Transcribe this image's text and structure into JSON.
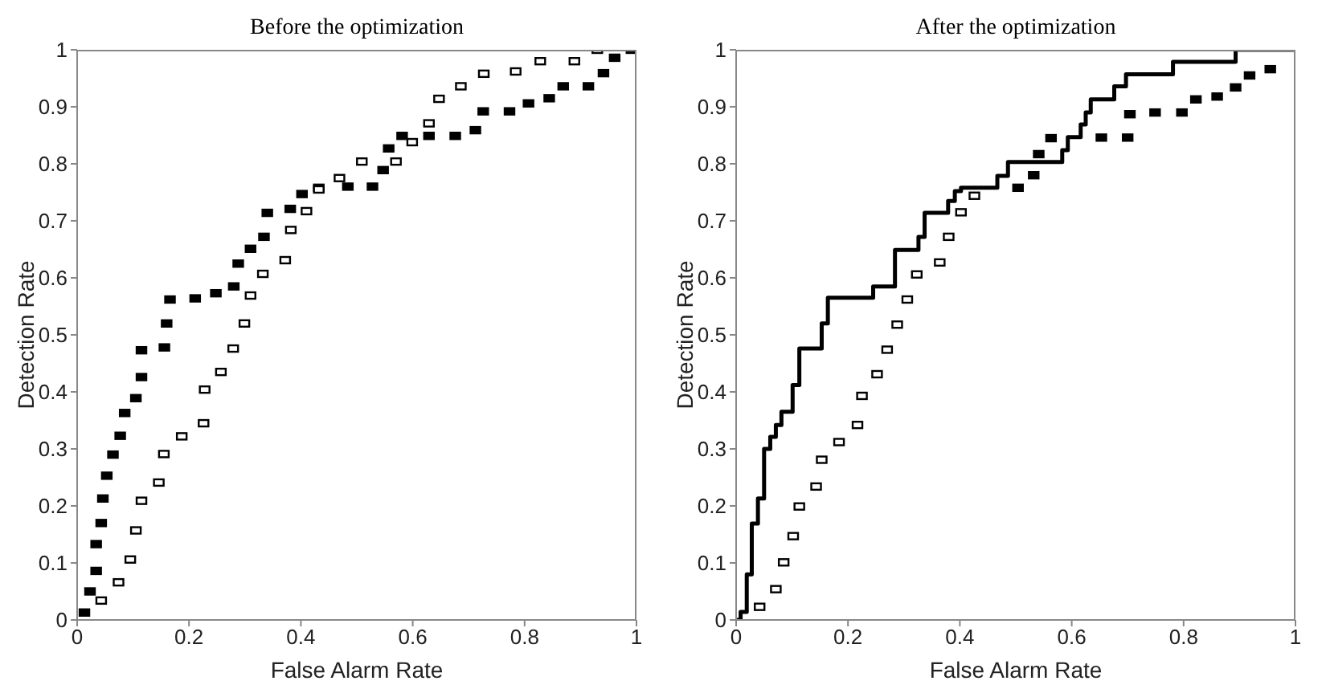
{
  "chart_data": [
    {
      "type": "scatter",
      "title": "Before the optimization",
      "xlabel": "False Alarm Rate",
      "ylabel": "Detection Rate",
      "xlim": [
        0,
        1
      ],
      "ylim": [
        0,
        1
      ],
      "xticks": [
        0,
        0.2,
        0.4,
        0.6,
        0.8,
        1
      ],
      "yticks": [
        0,
        0.1,
        0.2,
        0.3,
        0.4,
        0.5,
        0.6,
        0.7,
        0.8,
        0.9,
        1
      ],
      "grid": false,
      "marker": "square",
      "series": [
        {
          "type": "scatter",
          "color": "#000000",
          "x": [
            0.013,
            0.023,
            0.034,
            0.034,
            0.043,
            0.046,
            0.053,
            0.064,
            0.077,
            0.085,
            0.105,
            0.115,
            0.115,
            0.156,
            0.16,
            0.166,
            0.211,
            0.248,
            0.28,
            0.288,
            0.31,
            0.334,
            0.34,
            0.381,
            0.402,
            0.432,
            0.484,
            0.528,
            0.547,
            0.557,
            0.581,
            0.629,
            0.676,
            0.712,
            0.726,
            0.773,
            0.807,
            0.844,
            0.869,
            0.914,
            0.941,
            0.961,
            0.991
          ],
          "values": [
            0.013,
            0.05,
            0.086,
            0.133,
            0.17,
            0.213,
            0.253,
            0.29,
            0.323,
            0.363,
            0.389,
            0.426,
            0.473,
            0.478,
            0.52,
            0.562,
            0.564,
            0.573,
            0.585,
            0.625,
            0.651,
            0.672,
            0.714,
            0.721,
            0.747,
            0.758,
            0.76,
            0.76,
            0.789,
            0.827,
            0.849,
            0.849,
            0.849,
            0.859,
            0.892,
            0.892,
            0.906,
            0.915,
            0.936,
            0.936,
            0.959,
            0.986,
            1.0
          ]
        },
        {
          "type": "scatter",
          "color": "#ffffff",
          "x": [
            0.043,
            0.074,
            0.095,
            0.105,
            0.115,
            0.146,
            0.155,
            0.187,
            0.226,
            0.228,
            0.257,
            0.279,
            0.299,
            0.31,
            0.332,
            0.372,
            0.382,
            0.41,
            0.432,
            0.469,
            0.509,
            0.57,
            0.599,
            0.629,
            0.647,
            0.686,
            0.727,
            0.784,
            0.828,
            0.889,
            0.93
          ],
          "values": [
            0.034,
            0.066,
            0.106,
            0.157,
            0.209,
            0.241,
            0.291,
            0.322,
            0.345,
            0.404,
            0.435,
            0.476,
            0.52,
            0.569,
            0.607,
            0.631,
            0.684,
            0.717,
            0.755,
            0.775,
            0.804,
            0.804,
            0.838,
            0.871,
            0.914,
            0.936,
            0.958,
            0.962,
            0.98,
            0.98,
            1.0
          ]
        }
      ]
    },
    {
      "type": "scatter",
      "title": "After the optimization",
      "xlabel": "False Alarm Rate",
      "ylabel": "Detection Rate",
      "xlim": [
        0,
        1
      ],
      "ylim": [
        0,
        1
      ],
      "xticks": [
        0,
        0.2,
        0.4,
        0.6,
        0.8,
        1
      ],
      "yticks": [
        0,
        0.1,
        0.2,
        0.3,
        0.4,
        0.5,
        0.6,
        0.7,
        0.8,
        0.9,
        1
      ],
      "grid": false,
      "marker": "square",
      "series": [
        {
          "type": "scatter",
          "color": "#ffffff",
          "x": [
            0.042,
            0.071,
            0.085,
            0.102,
            0.113,
            0.143,
            0.153,
            0.184,
            0.217,
            0.225,
            0.252,
            0.27,
            0.288,
            0.306,
            0.323,
            0.364,
            0.38,
            0.402,
            0.426
          ],
          "values": [
            0.023,
            0.054,
            0.101,
            0.147,
            0.199,
            0.234,
            0.281,
            0.312,
            0.342,
            0.393,
            0.431,
            0.474,
            0.518,
            0.562,
            0.606,
            0.627,
            0.672,
            0.715,
            0.744
          ]
        },
        {
          "type": "scatter",
          "color": "#000000",
          "x": [
            0.504,
            0.532,
            0.541,
            0.563,
            0.653,
            0.7,
            0.704,
            0.749,
            0.797,
            0.822,
            0.86,
            0.893,
            0.918,
            0.955
          ],
          "values": [
            0.758,
            0.78,
            0.817,
            0.845,
            0.846,
            0.846,
            0.887,
            0.89,
            0.89,
            0.913,
            0.918,
            0.934,
            0.955,
            0.966
          ]
        },
        {
          "type": "step",
          "color": "#000000",
          "marker": "none",
          "line_style": "solid",
          "x": [
            0,
            0.008,
            0.019,
            0.028,
            0.039,
            0.05,
            0.061,
            0.071,
            0.081,
            0.101,
            0.113,
            0.153,
            0.164,
            0.245,
            0.284,
            0.326,
            0.337,
            0.379,
            0.391,
            0.402,
            0.467,
            0.486,
            0.583,
            0.593,
            0.616,
            0.625,
            0.634,
            0.676,
            0.697,
            0.781,
            0.893,
            1
          ],
          "values": [
            0,
            0.014,
            0.08,
            0.169,
            0.213,
            0.3,
            0.321,
            0.342,
            0.365,
            0.412,
            0.476,
            0.52,
            0.565,
            0.585,
            0.649,
            0.672,
            0.714,
            0.735,
            0.752,
            0.758,
            0.779,
            0.803,
            0.824,
            0.847,
            0.869,
            0.89,
            0.913,
            0.936,
            0.957,
            0.979,
            1.0,
            1.0
          ]
        }
      ]
    }
  ]
}
